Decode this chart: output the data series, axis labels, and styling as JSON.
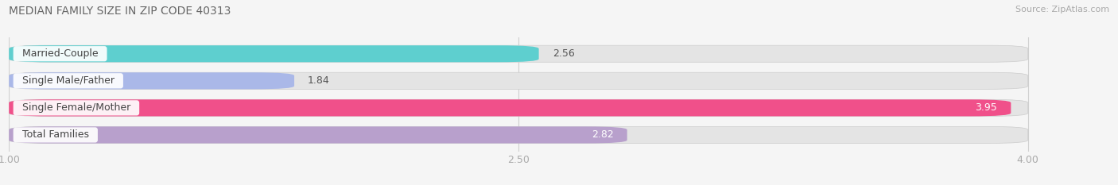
{
  "title": "MEDIAN FAMILY SIZE IN ZIP CODE 40313",
  "source": "Source: ZipAtlas.com",
  "categories": [
    "Married-Couple",
    "Single Male/Father",
    "Single Female/Mother",
    "Total Families"
  ],
  "values": [
    2.56,
    1.84,
    3.95,
    2.82
  ],
  "bar_colors": [
    "#5ecfcf",
    "#aab8e8",
    "#f0508a",
    "#b8a0cc"
  ],
  "value_colors": [
    "#555555",
    "#555555",
    "#ffffff",
    "#ffffff"
  ],
  "xlim_min": 1.0,
  "xlim_max": 4.0,
  "xlim_display_max": 4.15,
  "xticks": [
    1.0,
    2.5,
    4.0
  ],
  "xtick_labels": [
    "1.00",
    "2.50",
    "4.00"
  ],
  "title_fontsize": 10,
  "source_fontsize": 8,
  "value_fontsize": 9,
  "label_fontsize": 9,
  "bar_height": 0.62,
  "bar_gap": 0.38,
  "background_color": "#f5f5f5",
  "bar_bg_color": "#e4e4e4",
  "label_box_color": "#ffffff",
  "grid_color": "#d0d0d0"
}
